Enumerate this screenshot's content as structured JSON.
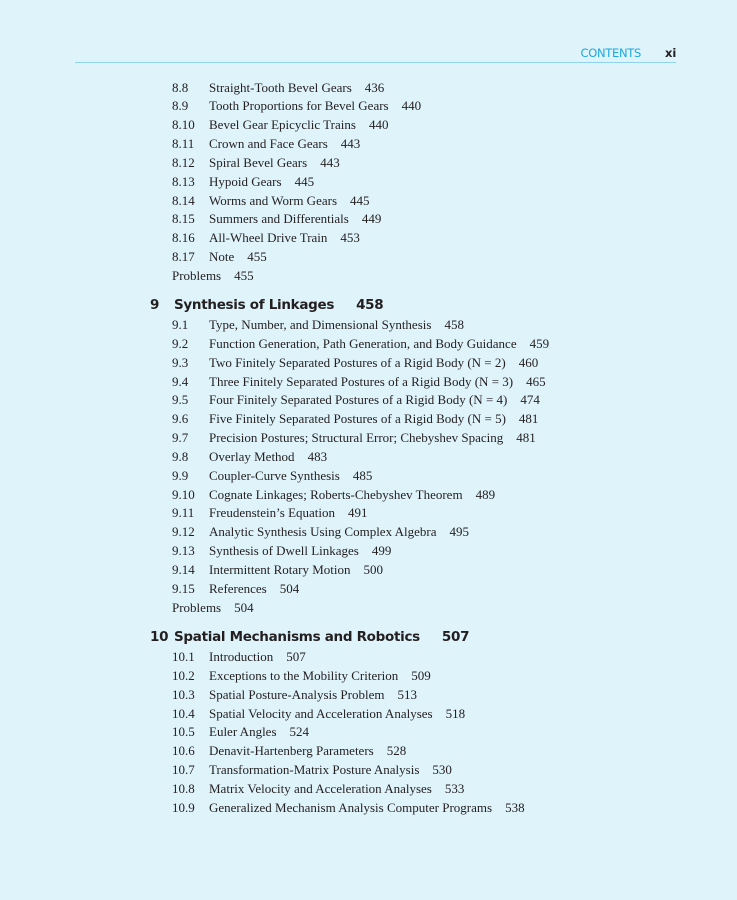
{
  "header": {
    "section": "CONTENTS",
    "page": "xi"
  },
  "block1": {
    "entries": [
      {
        "num": "8.8",
        "title": "Straight-Tooth Bevel Gears",
        "page": "436"
      },
      {
        "num": "8.9",
        "title": "Tooth Proportions for Bevel Gears",
        "page": "440"
      },
      {
        "num": "8.10",
        "title": "Bevel Gear Epicyclic Trains",
        "page": "440"
      },
      {
        "num": "8.11",
        "title": "Crown and Face Gears",
        "page": "443"
      },
      {
        "num": "8.12",
        "title": "Spiral Bevel Gears",
        "page": "443"
      },
      {
        "num": "8.13",
        "title": "Hypoid Gears",
        "page": "445"
      },
      {
        "num": "8.14",
        "title": "Worms and Worm Gears",
        "page": "445"
      },
      {
        "num": "8.15",
        "title": "Summers and Differentials",
        "page": "449"
      },
      {
        "num": "8.16",
        "title": "All-Wheel Drive Train",
        "page": "453"
      },
      {
        "num": "8.17",
        "title": "Note",
        "page": "455"
      }
    ],
    "problems": {
      "label": "Problems",
      "page": "455"
    }
  },
  "chapter9": {
    "num": "9",
    "title": "Synthesis of Linkages",
    "page": "458",
    "entries": [
      {
        "num": "9.1",
        "title": "Type, Number, and Dimensional Synthesis",
        "page": "458"
      },
      {
        "num": "9.2",
        "title": "Function Generation, Path Generation, and Body Guidance",
        "page": "459"
      },
      {
        "num": "9.3",
        "title": "Two Finitely Separated Postures of a Rigid Body (N = 2)",
        "page": "460"
      },
      {
        "num": "9.4",
        "title": "Three Finitely Separated Postures of a Rigid Body (N = 3)",
        "page": "465"
      },
      {
        "num": "9.5",
        "title": "Four Finitely Separated Postures of a Rigid Body (N = 4)",
        "page": "474"
      },
      {
        "num": "9.6",
        "title": "Five Finitely Separated Postures of a Rigid Body (N = 5)",
        "page": "481"
      },
      {
        "num": "9.7",
        "title": "Precision Postures; Structural Error; Chebyshev Spacing",
        "page": "481"
      },
      {
        "num": "9.8",
        "title": "Overlay Method",
        "page": "483"
      },
      {
        "num": "9.9",
        "title": "Coupler-Curve Synthesis",
        "page": "485"
      },
      {
        "num": "9.10",
        "title": "Cognate Linkages; Roberts-Chebyshev Theorem",
        "page": "489"
      },
      {
        "num": "9.11",
        "title": "Freudenstein’s Equation",
        "page": "491"
      },
      {
        "num": "9.12",
        "title": "Analytic Synthesis Using Complex Algebra",
        "page": "495"
      },
      {
        "num": "9.13",
        "title": "Synthesis of Dwell Linkages",
        "page": "499"
      },
      {
        "num": "9.14",
        "title": "Intermittent Rotary Motion",
        "page": "500"
      },
      {
        "num": "9.15",
        "title": "References",
        "page": "504"
      }
    ],
    "problems": {
      "label": "Problems",
      "page": "504"
    }
  },
  "chapter10": {
    "num": "10",
    "title": "Spatial Mechanisms and Robotics",
    "page": "507",
    "entries": [
      {
        "num": "10.1",
        "title": "Introduction",
        "page": "507"
      },
      {
        "num": "10.2",
        "title": "Exceptions to the Mobility Criterion",
        "page": "509"
      },
      {
        "num": "10.3",
        "title": "Spatial Posture-Analysis Problem",
        "page": "513"
      },
      {
        "num": "10.4",
        "title": "Spatial Velocity and Acceleration Analyses",
        "page": "518"
      },
      {
        "num": "10.5",
        "title": "Euler Angles",
        "page": "524"
      },
      {
        "num": "10.6",
        "title": "Denavit-Hartenberg Parameters",
        "page": "528"
      },
      {
        "num": "10.7",
        "title": "Transformation-Matrix Posture Analysis",
        "page": "530"
      },
      {
        "num": "10.8",
        "title": "Matrix Velocity and Acceleration Analyses",
        "page": "533"
      },
      {
        "num": "10.9",
        "title": "Generalized Mechanism Analysis Computer Programs",
        "page": "538"
      }
    ]
  }
}
